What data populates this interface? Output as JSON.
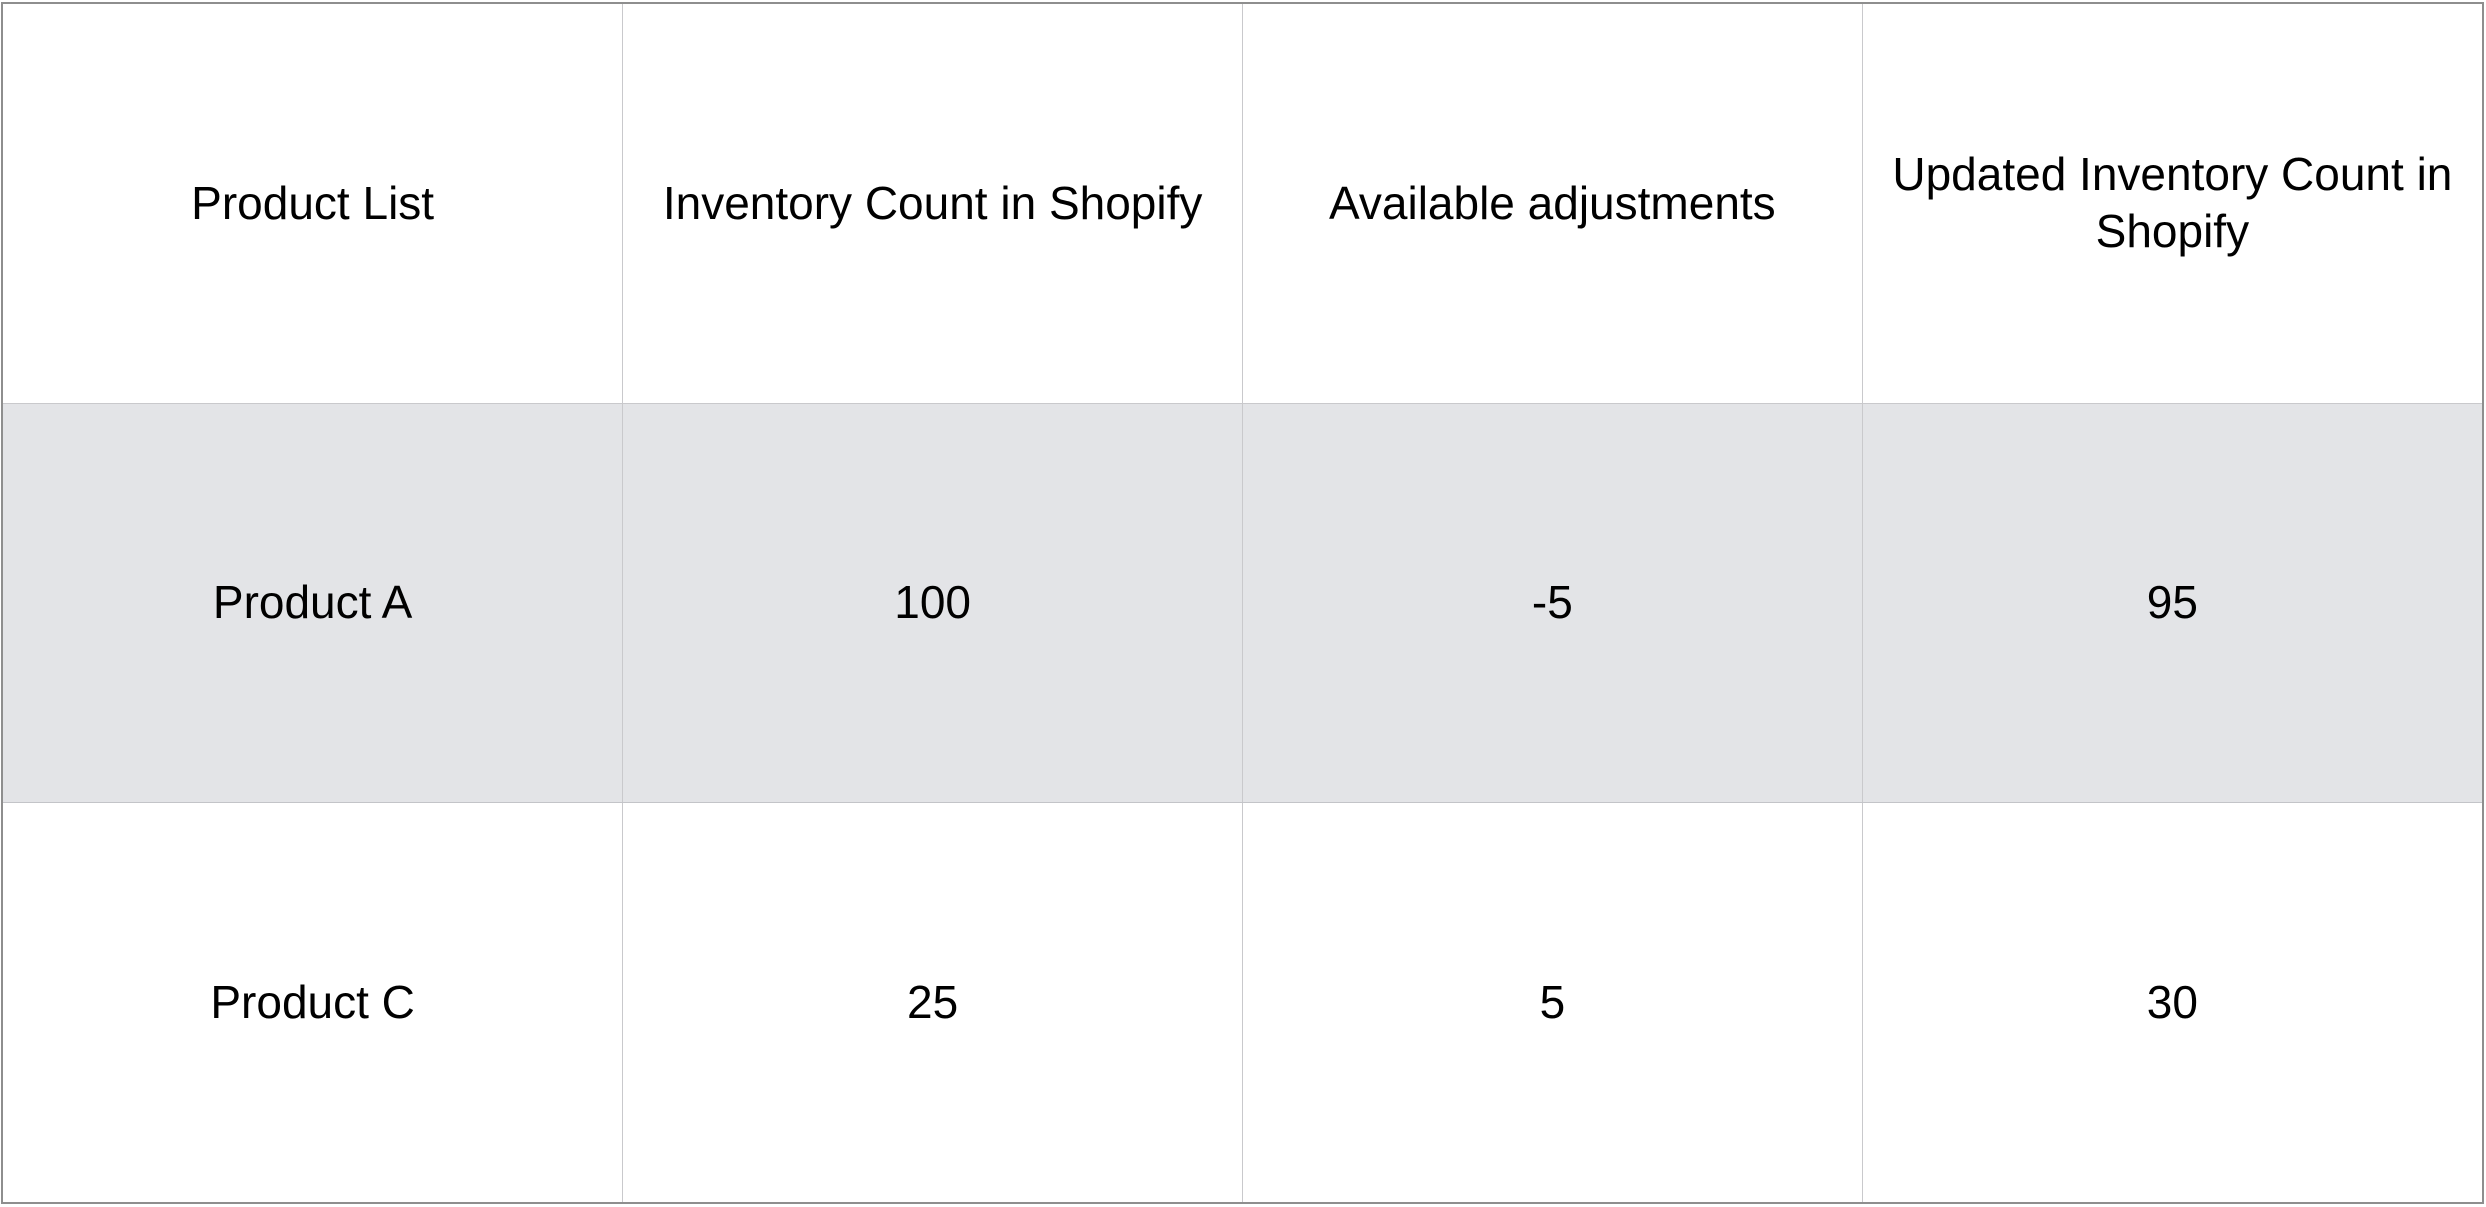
{
  "table": {
    "headers": [
      "Product List",
      "Inventory Count in Shopify",
      "Available adjustments",
      "Updated Inventory Count in Shopify"
    ],
    "rows": [
      [
        "Product A",
        "100",
        "-5",
        "95"
      ],
      [
        "Product C",
        "25",
        "5",
        "30"
      ]
    ]
  },
  "colors": {
    "shaded_row_background": "#e3e4e7",
    "grid_line": "#c9c9cc",
    "outer_border": "#8e8e8e"
  }
}
